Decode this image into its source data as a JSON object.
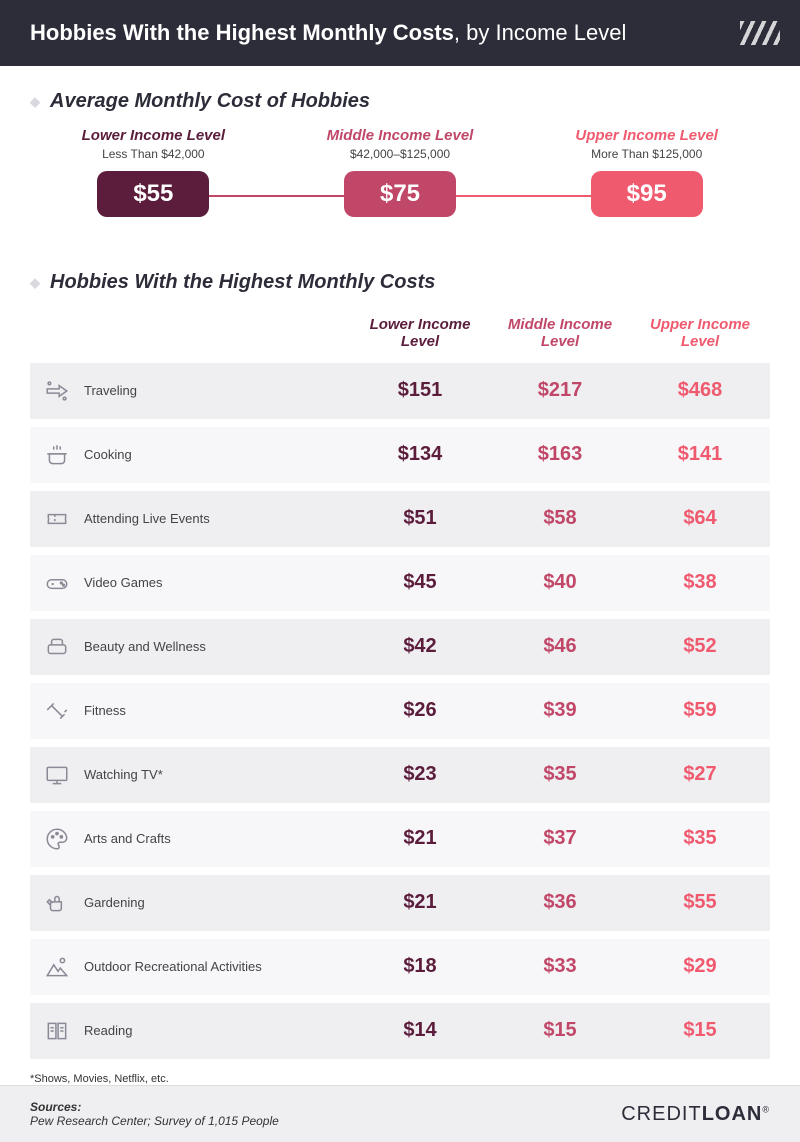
{
  "header": {
    "title_bold": "Hobbies With the Highest Monthly Costs",
    "title_rest": ", by Income Level"
  },
  "colors": {
    "lower": "#5b1d3b",
    "middle": "#c14768",
    "upper": "#ef5a6f",
    "header_bg": "#2d2d3a",
    "row_odd": "#efeff2",
    "row_even": "#f7f7f9"
  },
  "avg": {
    "title": "Average Monthly Cost of Hobbies",
    "items": [
      {
        "label": "Lower Income Level",
        "sub": "Less Than $42,000",
        "value": "$55",
        "color": "#5b1d3b"
      },
      {
        "label": "Middle Income Level",
        "sub": "$42,000–$125,000",
        "value": "$75",
        "color": "#c14768"
      },
      {
        "label": "Upper Income Level",
        "sub": "More Than $125,000",
        "value": "$95",
        "color": "#ef5a6f"
      }
    ]
  },
  "table": {
    "title": "Hobbies With the Highest Monthly Costs",
    "columns": [
      {
        "label": "Lower Income Level",
        "color": "#5b1d3b"
      },
      {
        "label": "Middle Income Level",
        "color": "#c14768"
      },
      {
        "label": "Upper Income Level",
        "color": "#ef5a6f"
      }
    ],
    "rows": [
      {
        "icon": "plane",
        "name": "Traveling",
        "values": [
          "$151",
          "$217",
          "$468"
        ]
      },
      {
        "icon": "pot",
        "name": "Cooking",
        "values": [
          "$134",
          "$163",
          "$141"
        ]
      },
      {
        "icon": "ticket",
        "name": "Attending Live Events",
        "values": [
          "$51",
          "$58",
          "$64"
        ]
      },
      {
        "icon": "gamepad",
        "name": "Video Games",
        "values": [
          "$45",
          "$40",
          "$38"
        ]
      },
      {
        "icon": "spa",
        "name": "Beauty and Wellness",
        "values": [
          "$42",
          "$46",
          "$52"
        ]
      },
      {
        "icon": "dumbbell",
        "name": "Fitness",
        "values": [
          "$26",
          "$39",
          "$59"
        ]
      },
      {
        "icon": "tv",
        "name": "Watching TV*",
        "values": [
          "$23",
          "$35",
          "$27"
        ]
      },
      {
        "icon": "palette",
        "name": "Arts and Crafts",
        "values": [
          "$21",
          "$37",
          "$35"
        ]
      },
      {
        "icon": "wateringcan",
        "name": "Gardening",
        "values": [
          "$21",
          "$36",
          "$55"
        ]
      },
      {
        "icon": "mountain",
        "name": "Outdoor Recreational Activities",
        "values": [
          "$18",
          "$33",
          "$29"
        ]
      },
      {
        "icon": "book",
        "name": "Reading",
        "values": [
          "$14",
          "$15",
          "$15"
        ]
      }
    ]
  },
  "footnote": "*Shows, Movies, Netflix, etc.",
  "footer": {
    "sources_label": "Sources:",
    "sources_text": "Pew Research Center; Survey of 1,015 People",
    "brand_a": "CREDIT",
    "brand_b": "LOAN"
  }
}
